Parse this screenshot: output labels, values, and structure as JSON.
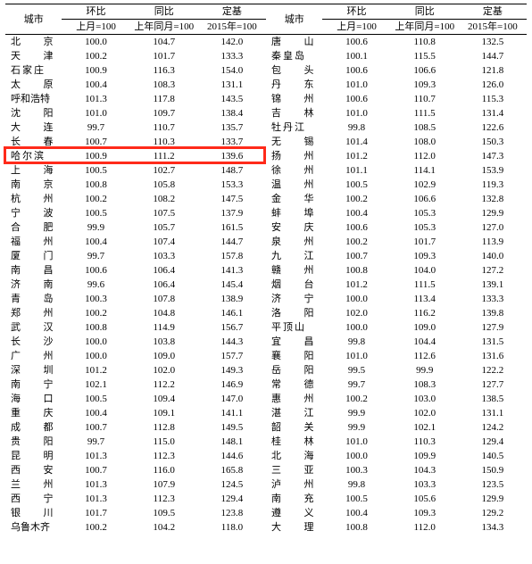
{
  "headers": {
    "city": "城市",
    "mom": "环比",
    "yoy": "同比",
    "base": "定基",
    "mom_sub": "上月=100",
    "yoy_sub": "上年同月=100",
    "base_sub": "2015年=100"
  },
  "highlight_row_index": 8,
  "highlight_color": "#ff2a1a",
  "left": [
    {
      "city": "北 京",
      "mom": "100.0",
      "yoy": "104.7",
      "base": "142.0"
    },
    {
      "city": "天 津",
      "mom": "100.2",
      "yoy": "101.7",
      "base": "133.3"
    },
    {
      "city": "石家庄",
      "mom": "100.9",
      "yoy": "116.3",
      "base": "154.0"
    },
    {
      "city": "太 原",
      "mom": "100.4",
      "yoy": "108.3",
      "base": "131.1"
    },
    {
      "city": "呼和浩特",
      "mom": "101.3",
      "yoy": "117.8",
      "base": "143.5"
    },
    {
      "city": "沈 阳",
      "mom": "101.0",
      "yoy": "109.7",
      "base": "138.4"
    },
    {
      "city": "大 连",
      "mom": "99.7",
      "yoy": "110.7",
      "base": "135.7"
    },
    {
      "city": "长 春",
      "mom": "100.7",
      "yoy": "110.3",
      "base": "133.7"
    },
    {
      "city": "哈尔滨",
      "mom": "100.9",
      "yoy": "111.2",
      "base": "139.6"
    },
    {
      "city": "上 海",
      "mom": "100.5",
      "yoy": "102.7",
      "base": "148.7"
    },
    {
      "city": "南 京",
      "mom": "100.8",
      "yoy": "105.8",
      "base": "153.3"
    },
    {
      "city": "杭 州",
      "mom": "100.2",
      "yoy": "108.2",
      "base": "147.5"
    },
    {
      "city": "宁 波",
      "mom": "100.5",
      "yoy": "107.5",
      "base": "137.9"
    },
    {
      "city": "合 肥",
      "mom": "99.9",
      "yoy": "105.7",
      "base": "161.5"
    },
    {
      "city": "福 州",
      "mom": "100.4",
      "yoy": "107.4",
      "base": "144.7"
    },
    {
      "city": "厦 门",
      "mom": "99.7",
      "yoy": "103.3",
      "base": "157.8"
    },
    {
      "city": "南 昌",
      "mom": "100.6",
      "yoy": "106.4",
      "base": "141.3"
    },
    {
      "city": "济 南",
      "mom": "99.6",
      "yoy": "106.4",
      "base": "145.4"
    },
    {
      "city": "青 岛",
      "mom": "100.3",
      "yoy": "107.8",
      "base": "138.9"
    },
    {
      "city": "郑 州",
      "mom": "100.2",
      "yoy": "104.8",
      "base": "146.1"
    },
    {
      "city": "武 汉",
      "mom": "100.8",
      "yoy": "114.9",
      "base": "156.7"
    },
    {
      "city": "长 沙",
      "mom": "100.0",
      "yoy": "103.8",
      "base": "144.3"
    },
    {
      "city": "广 州",
      "mom": "100.0",
      "yoy": "109.0",
      "base": "157.7"
    },
    {
      "city": "深 圳",
      "mom": "101.2",
      "yoy": "102.0",
      "base": "149.3"
    },
    {
      "city": "南 宁",
      "mom": "102.1",
      "yoy": "112.2",
      "base": "146.9"
    },
    {
      "city": "海 口",
      "mom": "100.5",
      "yoy": "109.4",
      "base": "147.0"
    },
    {
      "city": "重 庆",
      "mom": "100.4",
      "yoy": "109.1",
      "base": "141.1"
    },
    {
      "city": "成 都",
      "mom": "100.7",
      "yoy": "112.8",
      "base": "149.5"
    },
    {
      "city": "贵 阳",
      "mom": "99.7",
      "yoy": "115.0",
      "base": "148.1"
    },
    {
      "city": "昆 明",
      "mom": "101.3",
      "yoy": "112.3",
      "base": "144.6"
    },
    {
      "city": "西 安",
      "mom": "100.7",
      "yoy": "116.0",
      "base": "165.8"
    },
    {
      "city": "兰 州",
      "mom": "101.3",
      "yoy": "107.9",
      "base": "124.5"
    },
    {
      "city": "西 宁",
      "mom": "101.3",
      "yoy": "112.3",
      "base": "129.4"
    },
    {
      "city": "银 川",
      "mom": "101.7",
      "yoy": "109.5",
      "base": "123.8"
    },
    {
      "city": "乌鲁木齐",
      "mom": "100.2",
      "yoy": "104.2",
      "base": "118.0"
    }
  ],
  "right": [
    {
      "city": "唐 山",
      "mom": "100.6",
      "yoy": "110.8",
      "base": "132.5"
    },
    {
      "city": "秦皇岛",
      "mom": "100.1",
      "yoy": "115.5",
      "base": "144.7"
    },
    {
      "city": "包 头",
      "mom": "100.6",
      "yoy": "106.6",
      "base": "121.8"
    },
    {
      "city": "丹 东",
      "mom": "101.0",
      "yoy": "109.3",
      "base": "126.0"
    },
    {
      "city": "锦 州",
      "mom": "100.6",
      "yoy": "110.7",
      "base": "115.3"
    },
    {
      "city": "吉 林",
      "mom": "101.0",
      "yoy": "111.5",
      "base": "131.4"
    },
    {
      "city": "牡丹江",
      "mom": "99.8",
      "yoy": "108.5",
      "base": "122.6"
    },
    {
      "city": "无 锡",
      "mom": "101.4",
      "yoy": "108.0",
      "base": "150.3"
    },
    {
      "city": "扬 州",
      "mom": "101.2",
      "yoy": "112.0",
      "base": "147.3"
    },
    {
      "city": "徐 州",
      "mom": "101.1",
      "yoy": "114.1",
      "base": "153.9"
    },
    {
      "city": "温 州",
      "mom": "100.5",
      "yoy": "102.9",
      "base": "119.3"
    },
    {
      "city": "金 华",
      "mom": "100.2",
      "yoy": "106.6",
      "base": "132.8"
    },
    {
      "city": "蚌 埠",
      "mom": "100.4",
      "yoy": "105.3",
      "base": "129.9"
    },
    {
      "city": "安 庆",
      "mom": "100.6",
      "yoy": "105.3",
      "base": "127.0"
    },
    {
      "city": "泉 州",
      "mom": "100.2",
      "yoy": "101.7",
      "base": "113.9"
    },
    {
      "city": "九 江",
      "mom": "100.7",
      "yoy": "109.3",
      "base": "140.0"
    },
    {
      "city": "赣 州",
      "mom": "100.8",
      "yoy": "104.0",
      "base": "127.2"
    },
    {
      "city": "烟 台",
      "mom": "101.2",
      "yoy": "111.5",
      "base": "139.1"
    },
    {
      "city": "济 宁",
      "mom": "100.0",
      "yoy": "113.4",
      "base": "133.3"
    },
    {
      "city": "洛 阳",
      "mom": "102.0",
      "yoy": "116.2",
      "base": "139.8"
    },
    {
      "city": "平顶山",
      "mom": "100.0",
      "yoy": "109.0",
      "base": "127.9"
    },
    {
      "city": "宜 昌",
      "mom": "99.8",
      "yoy": "104.4",
      "base": "131.5"
    },
    {
      "city": "襄 阳",
      "mom": "101.0",
      "yoy": "112.6",
      "base": "131.6"
    },
    {
      "city": "岳 阳",
      "mom": "99.5",
      "yoy": "99.9",
      "base": "122.2"
    },
    {
      "city": "常 德",
      "mom": "99.7",
      "yoy": "108.3",
      "base": "127.7"
    },
    {
      "city": "惠 州",
      "mom": "100.2",
      "yoy": "103.0",
      "base": "138.5"
    },
    {
      "city": "湛 江",
      "mom": "99.9",
      "yoy": "102.0",
      "base": "131.1"
    },
    {
      "city": "韶 关",
      "mom": "99.9",
      "yoy": "102.1",
      "base": "124.2"
    },
    {
      "city": "桂 林",
      "mom": "101.0",
      "yoy": "110.3",
      "base": "129.4"
    },
    {
      "city": "北 海",
      "mom": "100.0",
      "yoy": "109.9",
      "base": "140.5"
    },
    {
      "city": "三 亚",
      "mom": "100.3",
      "yoy": "104.3",
      "base": "150.9"
    },
    {
      "city": "泸 州",
      "mom": "99.8",
      "yoy": "103.3",
      "base": "123.5"
    },
    {
      "city": "南 充",
      "mom": "100.5",
      "yoy": "105.6",
      "base": "129.9"
    },
    {
      "city": "遵 义",
      "mom": "100.4",
      "yoy": "109.3",
      "base": "129.2"
    },
    {
      "city": "大 理",
      "mom": "100.8",
      "yoy": "112.0",
      "base": "134.3"
    }
  ]
}
